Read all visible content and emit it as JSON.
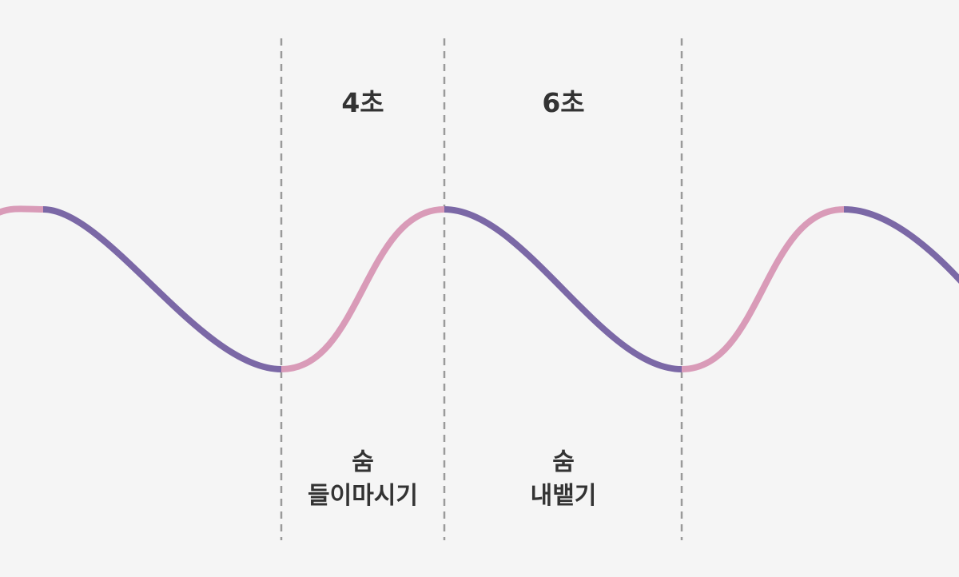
{
  "colors": {
    "background": "#f5f5f5",
    "inhale": "#d99bb8",
    "exhale": "#7b68a6",
    "divider": "#9a9a9a",
    "text": "#333333"
  },
  "phases": {
    "inhale": {
      "duration": "4초",
      "caption_line1": "숨",
      "caption_line2": "들이마시기"
    },
    "exhale": {
      "duration": "6초",
      "caption_line1": "숨",
      "caption_line2": "내뱉기"
    }
  }
}
